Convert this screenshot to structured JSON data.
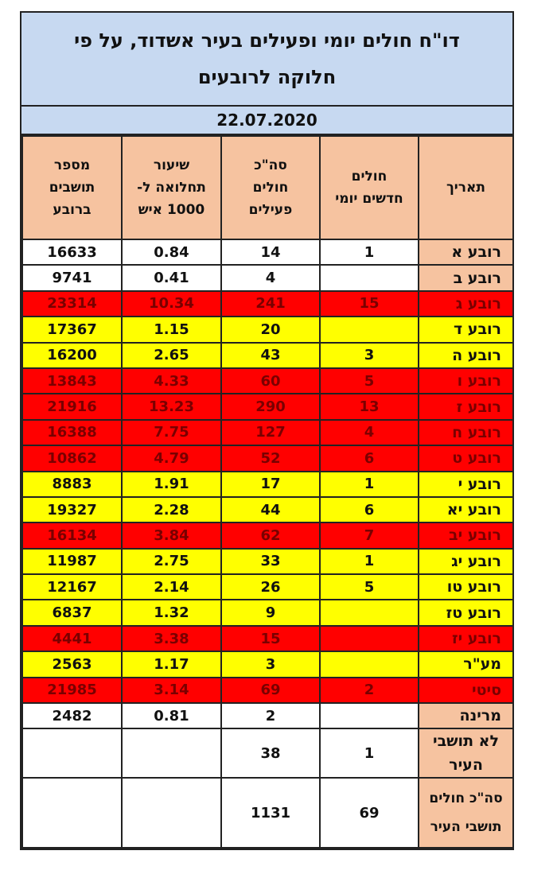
{
  "report": {
    "title_line1": "דו\"ח חולים יומי ופעילים בעיר אשדוד, על פי",
    "title_line2": "חלוקה לרובעים",
    "date": "22.07.2020",
    "headers": {
      "residents": [
        "מספר",
        "תושבים",
        "ברובע"
      ],
      "morbidity": [
        "שיעור",
        "תחלואה ל-",
        "1000 איש"
      ],
      "total_active": [
        "סה\"כ",
        "חולים",
        "פעילים"
      ],
      "new_daily": [
        "חולים",
        "חדשים יומי"
      ],
      "date_col": "תאריך"
    },
    "rows": [
      {
        "label": "רובע א",
        "new": "1",
        "active": "14",
        "rate": "0.84",
        "residents": "16633",
        "status": "white"
      },
      {
        "label": "רובע ב",
        "new": "",
        "active": "4",
        "rate": "0.41",
        "residents": "9741",
        "status": "white"
      },
      {
        "label": "רובע ג",
        "new": "15",
        "active": "241",
        "rate": "10.34",
        "residents": "23314",
        "status": "red"
      },
      {
        "label": "רובע ד",
        "new": "",
        "active": "20",
        "rate": "1.15",
        "residents": "17367",
        "status": "yellow"
      },
      {
        "label": "רובע ה",
        "new": "3",
        "active": "43",
        "rate": "2.65",
        "residents": "16200",
        "status": "yellow"
      },
      {
        "label": "רובע ו",
        "new": "5",
        "active": "60",
        "rate": "4.33",
        "residents": "13843",
        "status": "red"
      },
      {
        "label": "רובע ז",
        "new": "13",
        "active": "290",
        "rate": "13.23",
        "residents": "21916",
        "status": "red"
      },
      {
        "label": "רובע ח",
        "new": "4",
        "active": "127",
        "rate": "7.75",
        "residents": "16388",
        "status": "red"
      },
      {
        "label": "רובע ט",
        "new": "6",
        "active": "52",
        "rate": "4.79",
        "residents": "10862",
        "status": "red"
      },
      {
        "label": "רובע י",
        "new": "1",
        "active": "17",
        "rate": "1.91",
        "residents": "8883",
        "status": "yellow"
      },
      {
        "label": "רובע יא",
        "new": "6",
        "active": "44",
        "rate": "2.28",
        "residents": "19327",
        "status": "yellow"
      },
      {
        "label": "רובע יב",
        "new": "7",
        "active": "62",
        "rate": "3.84",
        "residents": "16134",
        "status": "red"
      },
      {
        "label": "רובע יג",
        "new": "1",
        "active": "33",
        "rate": "2.75",
        "residents": "11987",
        "status": "yellow"
      },
      {
        "label": "רובע טו",
        "new": "5",
        "active": "26",
        "rate": "2.14",
        "residents": "12167",
        "status": "yellow"
      },
      {
        "label": "רובע טז",
        "new": "",
        "active": "9",
        "rate": "1.32",
        "residents": "6837",
        "status": "yellow"
      },
      {
        "label": "רובע יז",
        "new": "",
        "active": "15",
        "rate": "3.38",
        "residents": "4441",
        "status": "red"
      },
      {
        "label": "מע\"ר",
        "new": "",
        "active": "3",
        "rate": "1.17",
        "residents": "2563",
        "status": "yellow"
      },
      {
        "label": "סיטי",
        "new": "2",
        "active": "69",
        "rate": "3.14",
        "residents": "21985",
        "status": "red"
      },
      {
        "label": "מרינה",
        "new": "",
        "active": "2",
        "rate": "0.81",
        "residents": "2482",
        "status": "white"
      }
    ],
    "non_residents": {
      "label": [
        "לא תושבי",
        "העיר"
      ],
      "new": "1",
      "active": "38",
      "rate": "",
      "residents": ""
    },
    "total": {
      "label": [
        "סה\"כ חולים",
        "תושבי העיר"
      ],
      "new": "69",
      "active": "1131",
      "rate": "",
      "residents": ""
    },
    "colors": {
      "header_blue": "#c7d9f1",
      "header_peach": "#f6c3a0",
      "red": "#ff0000",
      "yellow": "#ffff00",
      "white": "#ffffff"
    }
  }
}
